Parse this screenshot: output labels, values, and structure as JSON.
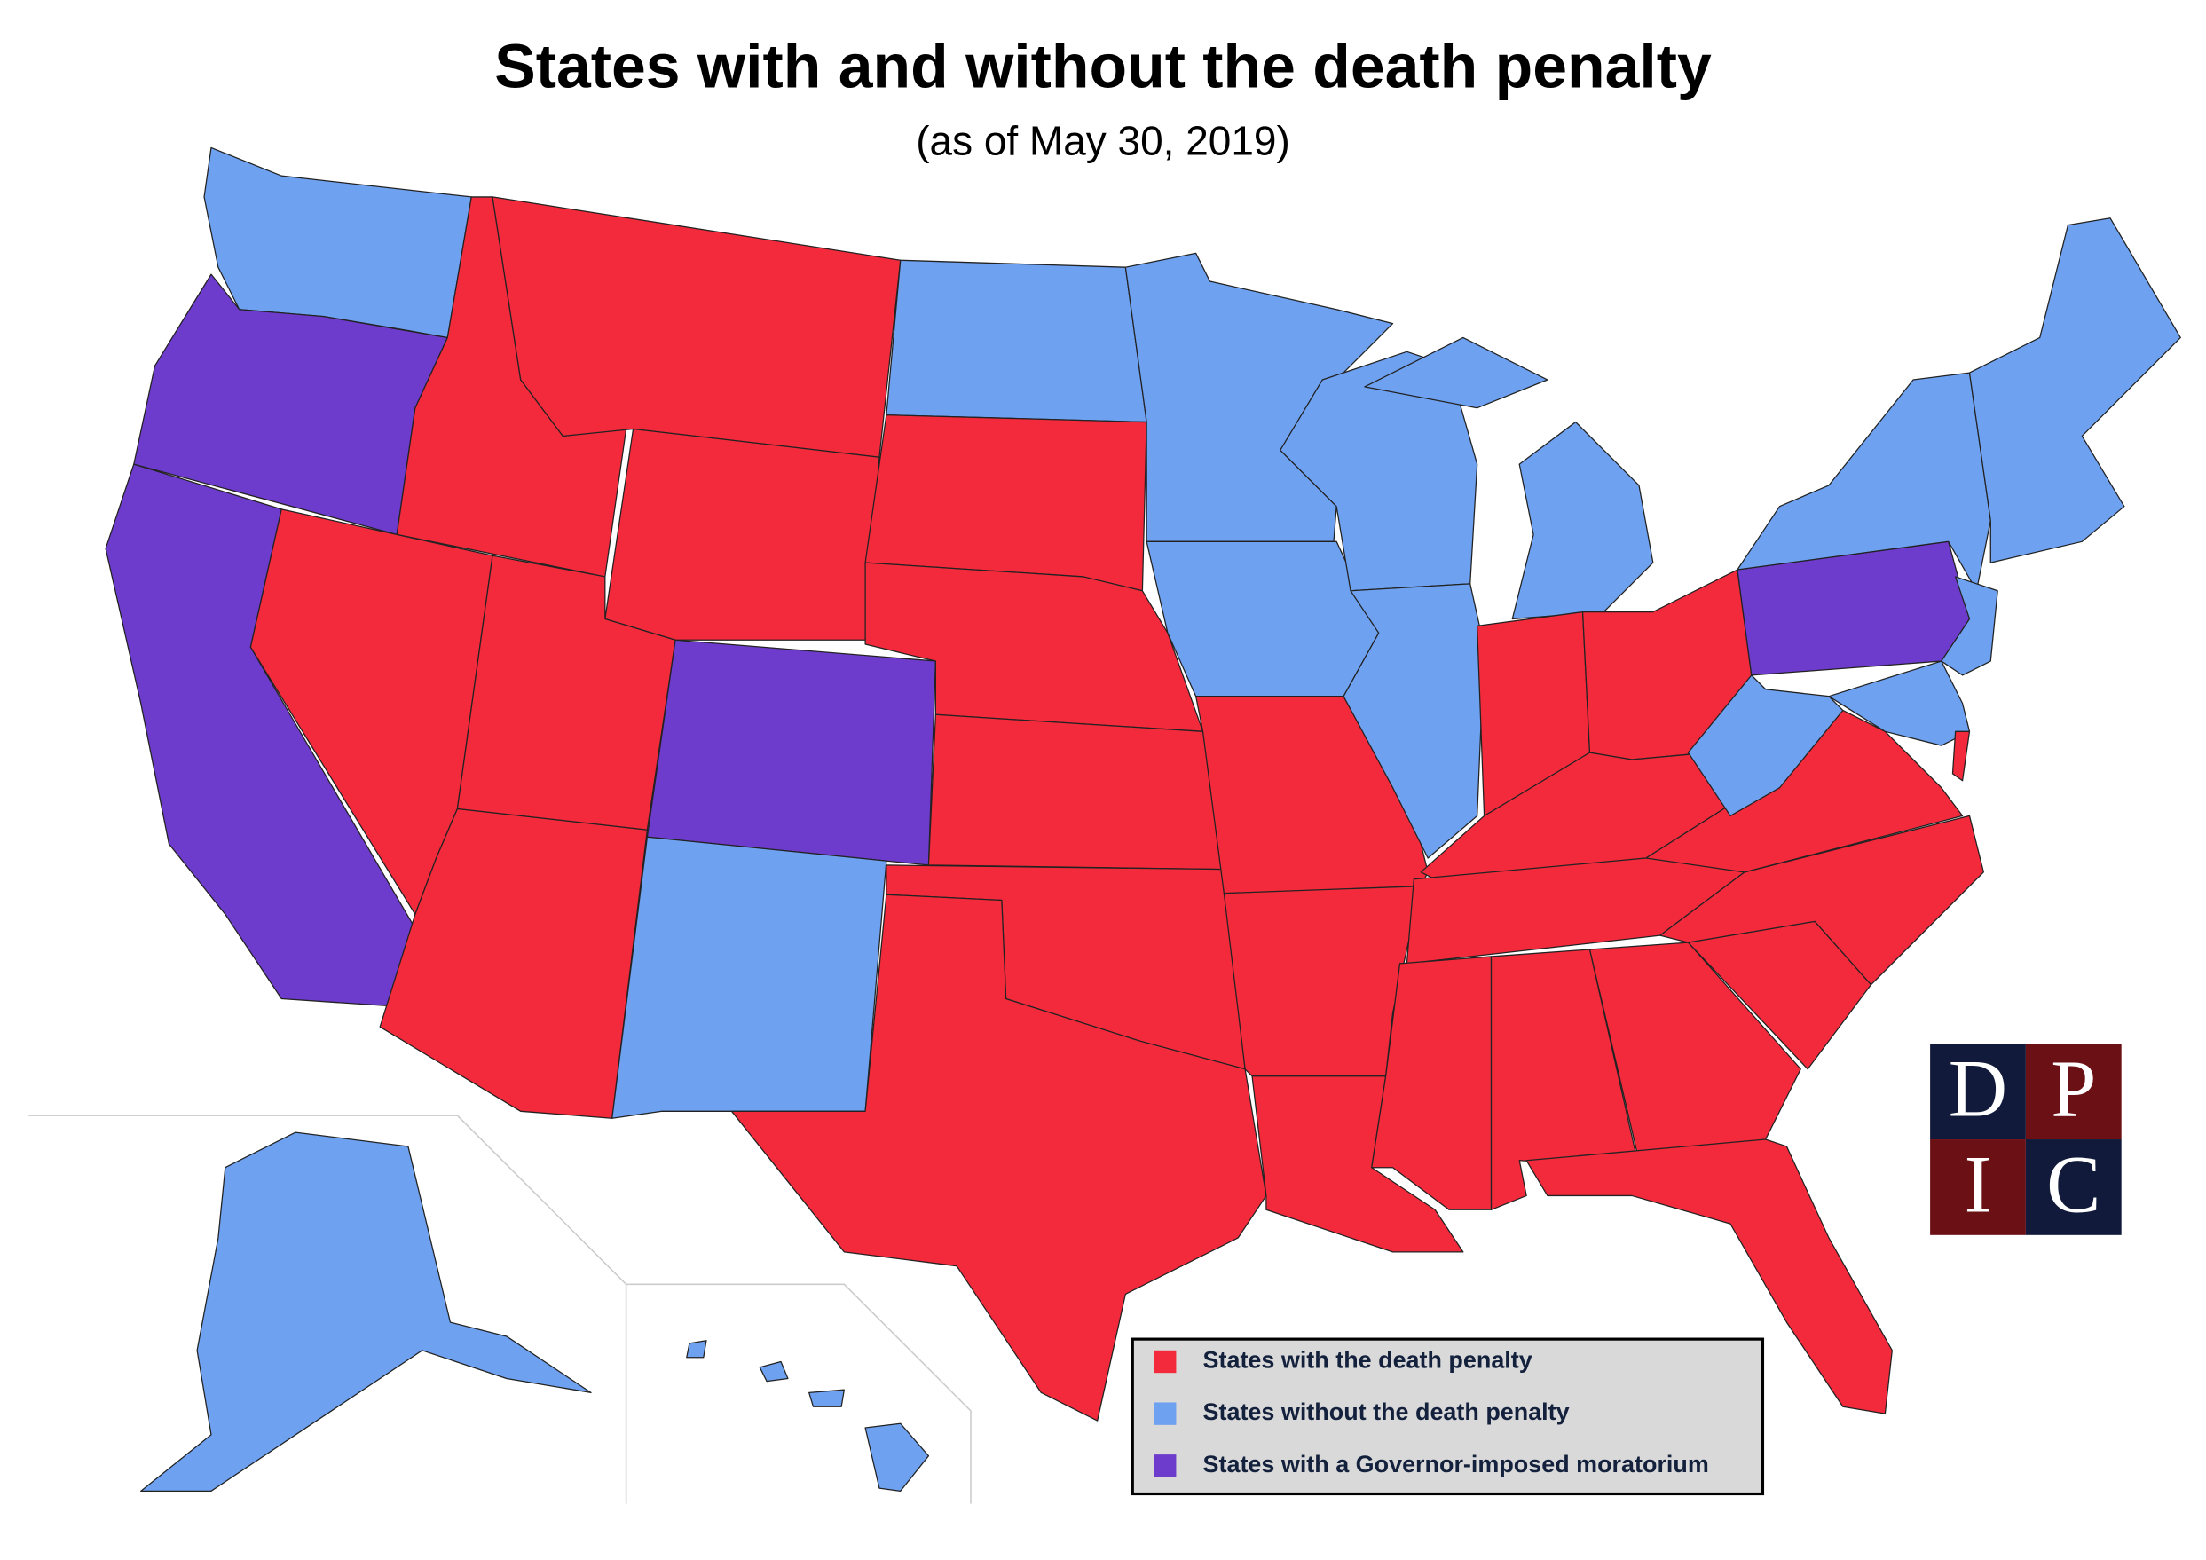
{
  "title": "States with and without the death penalty",
  "subtitle": "(as of May 30, 2019)",
  "legend": [
    {
      "label": "States with the death penalty",
      "color": "#f22a3c"
    },
    {
      "label": "States without the death penalty",
      "color": "#6ea1f0"
    },
    {
      "label": "States with a Governor-imposed moratorium",
      "color": "#6e3ccc"
    }
  ],
  "logo": {
    "letters": [
      "D",
      "P",
      "I",
      "C"
    ]
  }
}
